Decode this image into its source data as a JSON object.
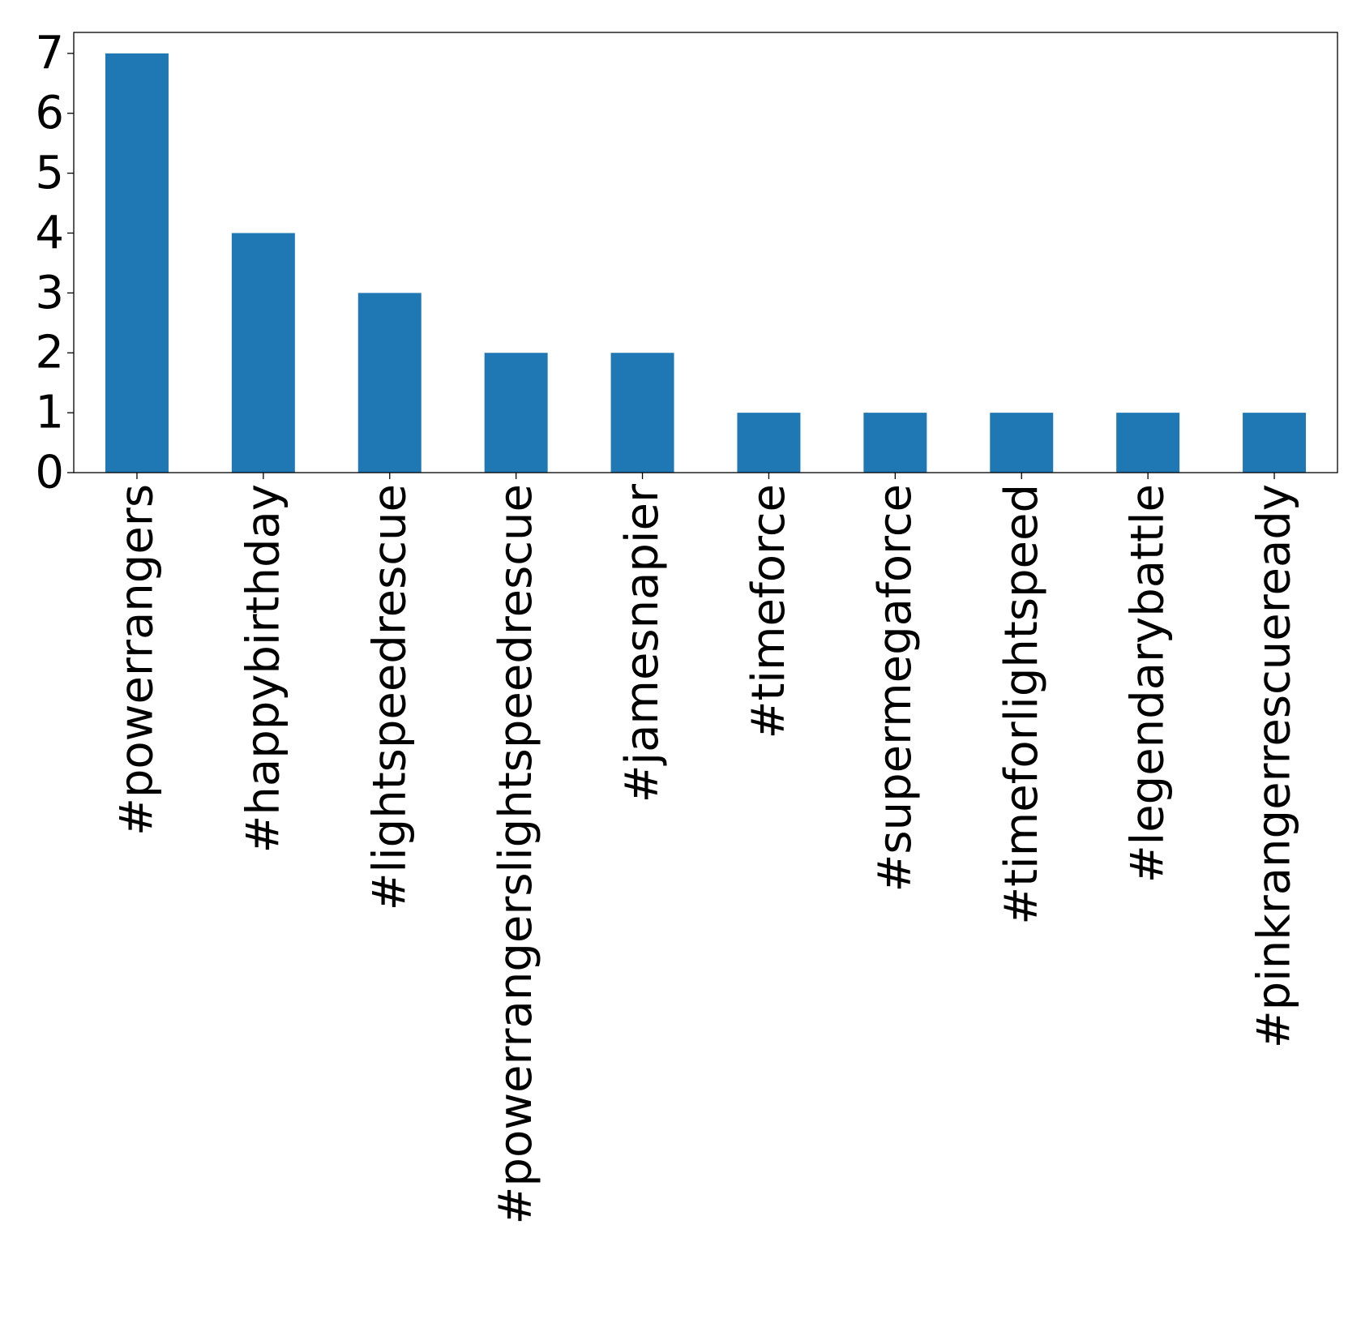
{
  "chart_data": {
    "type": "bar",
    "title": "",
    "xlabel": "",
    "ylabel": "",
    "categories": [
      "#powerrangers",
      "#happybirthday",
      "#lightspeedrescue",
      "#powerrangerslightspeedrescue",
      "#jamesnapier",
      "#timeforce",
      "#supermegaforce",
      "#timeforlightspeed",
      "#legendarybattle",
      "#pinkrangerrescueready"
    ],
    "values": [
      7,
      4,
      3,
      2,
      2,
      1,
      1,
      1,
      1,
      1
    ],
    "ylim": [
      0,
      7.35
    ],
    "yticks": [
      "0",
      "1",
      "2",
      "3",
      "4",
      "5",
      "6",
      "7"
    ],
    "grid": false,
    "legend": "none",
    "bar_color": "#1f77b4",
    "axis_color": "#000000",
    "background": "#ffffff"
  }
}
